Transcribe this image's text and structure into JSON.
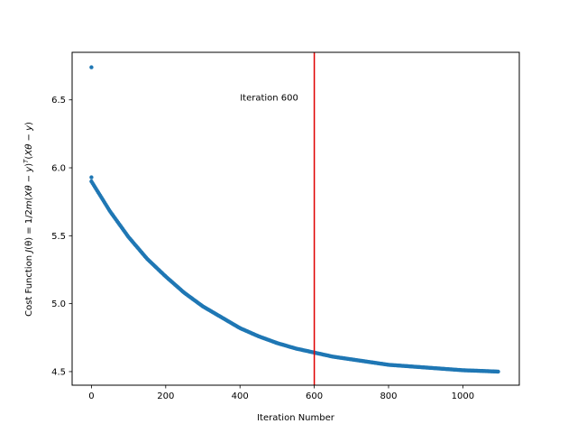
{
  "chart_data": {
    "type": "scatter",
    "title": "",
    "xlabel": "Iteration Number",
    "ylabel_parts": {
      "prefix": "Cost Function ",
      "j": "J",
      "theta_arg": "(θ)",
      "equals": " = 1/2",
      "m": "m",
      "paren_open": "(",
      "x1": "X",
      "theta1": "θ",
      "minus1": " − ",
      "y1": "y",
      "paren_close1": ")",
      "superscript_t": "T",
      "paren_open2": "(",
      "x2": "X",
      "theta2": "θ",
      "minus2": " − ",
      "y2": "y",
      "paren_close2": ")"
    },
    "xlim": [
      -52,
      1152
    ],
    "ylim": [
      4.4,
      6.85
    ],
    "xticks": [
      {
        "value": 0,
        "label": "0"
      },
      {
        "value": 200,
        "label": "200"
      },
      {
        "value": 400,
        "label": "400"
      },
      {
        "value": 600,
        "label": "600"
      },
      {
        "value": 800,
        "label": "800"
      },
      {
        "value": 1000,
        "label": "1000"
      }
    ],
    "yticks": [
      {
        "value": 4.5,
        "label": "4.5"
      },
      {
        "value": 5.0,
        "label": "5.0"
      },
      {
        "value": 5.5,
        "label": "5.5"
      },
      {
        "value": 6.0,
        "label": "6.0"
      },
      {
        "value": 6.5,
        "label": "6.5"
      }
    ],
    "grid": false,
    "legend": "none",
    "series": [
      {
        "color": "#1f77b4",
        "marker": "dot",
        "outliers": [
          {
            "x": 0,
            "y": 6.74
          },
          {
            "x": 0,
            "y": 5.93
          }
        ],
        "points": [
          {
            "x": 0,
            "y": 5.9
          },
          {
            "x": 50,
            "y": 5.68
          },
          {
            "x": 100,
            "y": 5.49
          },
          {
            "x": 150,
            "y": 5.33
          },
          {
            "x": 200,
            "y": 5.2
          },
          {
            "x": 250,
            "y": 5.08
          },
          {
            "x": 300,
            "y": 4.98
          },
          {
            "x": 350,
            "y": 4.9
          },
          {
            "x": 400,
            "y": 4.82
          },
          {
            "x": 450,
            "y": 4.76
          },
          {
            "x": 500,
            "y": 4.71
          },
          {
            "x": 550,
            "y": 4.67
          },
          {
            "x": 600,
            "y": 4.64
          },
          {
            "x": 650,
            "y": 4.61
          },
          {
            "x": 700,
            "y": 4.59
          },
          {
            "x": 750,
            "y": 4.57
          },
          {
            "x": 800,
            "y": 4.55
          },
          {
            "x": 850,
            "y": 4.54
          },
          {
            "x": 900,
            "y": 4.53
          },
          {
            "x": 950,
            "y": 4.52
          },
          {
            "x": 1000,
            "y": 4.51
          },
          {
            "x": 1050,
            "y": 4.505
          },
          {
            "x": 1095,
            "y": 4.5
          }
        ]
      }
    ],
    "annotations": [
      {
        "type": "vline",
        "x": 600,
        "color": "#e00000"
      },
      {
        "type": "text",
        "x": 400,
        "y": 6.52,
        "text": "Iteration 600"
      }
    ]
  }
}
